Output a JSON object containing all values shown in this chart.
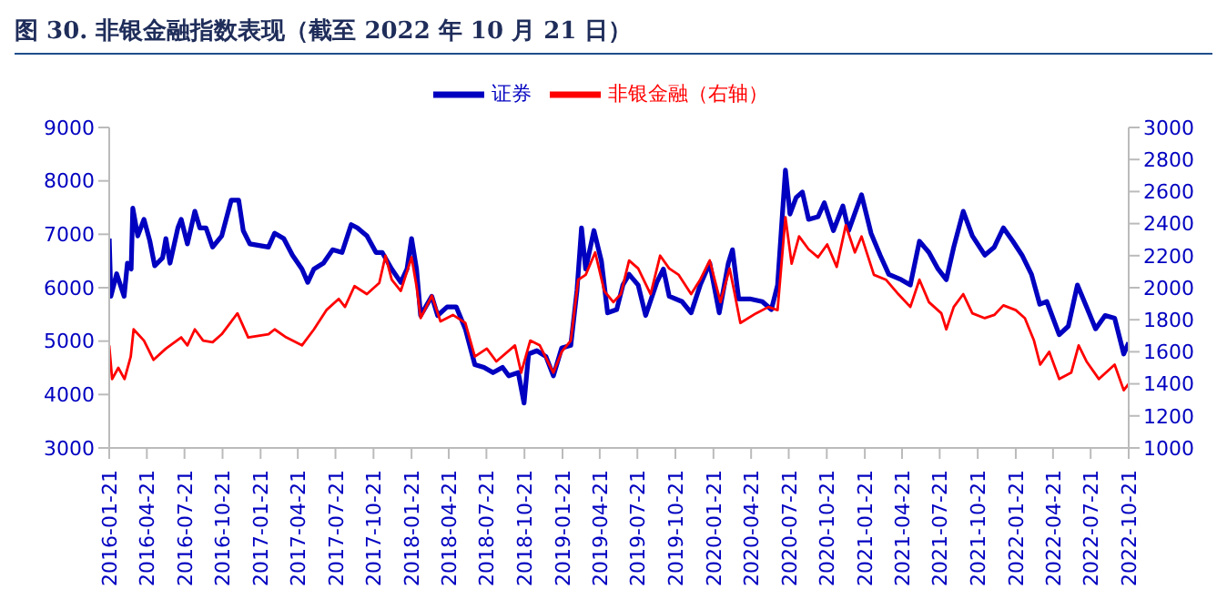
{
  "chart_data": {
    "type": "line",
    "title": "图 30. 非银金融指数表现（截至 2022 年 10 月 21 日）",
    "series": [
      {
        "name": "证券",
        "color": "#0000c0",
        "x": [
          "2016-01-21",
          "2016-01-25",
          "2016-02-08",
          "2016-02-26",
          "2016-03-05",
          "2016-03-14",
          "2016-03-18",
          "2016-03-30",
          "2016-04-14",
          "2016-04-28",
          "2016-05-10",
          "2016-05-29",
          "2016-06-06",
          "2016-06-16",
          "2016-07-05",
          "2016-07-13",
          "2016-07-28",
          "2016-08-15",
          "2016-08-27",
          "2016-09-11",
          "2016-09-27",
          "2016-10-19",
          "2016-11-11",
          "2016-11-29",
          "2016-12-10",
          "2016-12-26",
          "2017-02-09",
          "2017-02-24",
          "2017-03-18",
          "2017-04-08",
          "2017-05-01",
          "2017-05-15",
          "2017-05-30",
          "2017-06-22",
          "2017-07-14",
          "2017-08-06",
          "2017-08-28",
          "2017-09-12",
          "2017-10-05",
          "2017-10-27",
          "2017-11-11",
          "2017-12-04",
          "2017-12-26",
          "2018-01-10",
          "2018-01-21",
          "2018-02-02",
          "2018-02-12",
          "2018-03-11",
          "2018-03-25",
          "2018-04-17",
          "2018-05-09",
          "2018-05-31",
          "2018-06-23",
          "2018-07-15",
          "2018-08-06",
          "2018-08-29",
          "2018-09-13",
          "2018-10-06",
          "2018-10-20",
          "2018-10-31",
          "2018-11-20",
          "2018-12-12",
          "2018-12-30",
          "2019-01-19",
          "2019-02-10",
          "2019-02-25",
          "2019-03-08",
          "2019-03-18",
          "2019-04-07",
          "2019-04-25",
          "2019-05-10",
          "2019-06-01",
          "2019-06-16",
          "2019-07-01",
          "2019-07-23",
          "2019-08-10",
          "2019-09-06",
          "2019-09-22",
          "2019-10-06",
          "2019-11-06",
          "2019-11-28",
          "2019-12-20",
          "2020-01-12",
          "2020-02-04",
          "2020-02-26",
          "2020-03-07",
          "2020-03-22",
          "2020-04-18",
          "2020-05-18",
          "2020-06-09",
          "2020-06-24",
          "2020-07-13",
          "2020-07-24",
          "2020-08-08",
          "2020-08-23",
          "2020-09-07",
          "2020-09-30",
          "2020-10-15",
          "2020-11-06",
          "2020-11-29",
          "2020-12-13",
          "2021-01-13",
          "2021-02-05",
          "2021-02-27",
          "2021-03-20",
          "2021-04-19",
          "2021-05-11",
          "2021-06-02",
          "2021-06-25",
          "2021-07-17",
          "2021-08-06",
          "2021-08-24",
          "2021-09-16",
          "2021-10-08",
          "2021-11-07",
          "2021-11-30",
          "2021-12-22",
          "2022-01-14",
          "2022-02-05",
          "2022-02-28",
          "2022-03-20",
          "2022-04-06",
          "2022-05-06",
          "2022-05-28",
          "2022-06-19",
          "2022-07-11",
          "2022-08-02",
          "2022-08-25",
          "2022-09-17",
          "2022-10-09",
          "2022-10-21"
        ],
        "values": [
          6920,
          5840,
          6260,
          5840,
          6460,
          6350,
          7490,
          6970,
          7280,
          6880,
          6410,
          6560,
          6920,
          6460,
          7120,
          7280,
          6820,
          7430,
          7120,
          7120,
          6760,
          6970,
          7640,
          7640,
          7070,
          6820,
          6760,
          7020,
          6920,
          6610,
          6350,
          6100,
          6350,
          6460,
          6710,
          6660,
          7180,
          7120,
          6970,
          6660,
          6660,
          6350,
          6100,
          6350,
          6920,
          6350,
          5480,
          5840,
          5480,
          5640,
          5640,
          5230,
          4560,
          4510,
          4410,
          4510,
          4350,
          4410,
          3840,
          4760,
          4820,
          4710,
          4350,
          4870,
          4920,
          5950,
          7120,
          6350,
          7070,
          6500,
          5530,
          5590,
          6050,
          6250,
          6050,
          5480,
          6100,
          6350,
          5840,
          5740,
          5530,
          6050,
          6460,
          5530,
          6460,
          6710,
          5790,
          5790,
          5740,
          5590,
          6050,
          8200,
          7380,
          7690,
          7790,
          7280,
          7330,
          7590,
          7070,
          7530,
          7070,
          7740,
          7020,
          6610,
          6250,
          6150,
          6050,
          6870,
          6660,
          6350,
          6150,
          6760,
          7430,
          6970,
          6610,
          6760,
          7120,
          6870,
          6610,
          6250,
          5690,
          5740,
          5120,
          5280,
          6050,
          5640,
          5230,
          5480,
          5430,
          4760,
          4970
        ]
      },
      {
        "name": "非银金融（右轴）",
        "color": "#ff0000",
        "axis": "y2",
        "x": [
          "2016-01-21",
          "2016-01-28",
          "2016-02-12",
          "2016-02-27",
          "2016-03-13",
          "2016-03-20",
          "2016-04-14",
          "2016-05-07",
          "2016-06-06",
          "2016-07-13",
          "2016-07-28",
          "2016-08-15",
          "2016-09-04",
          "2016-09-27",
          "2016-10-19",
          "2016-11-26",
          "2016-12-22",
          "2017-02-09",
          "2017-02-24",
          "2017-03-24",
          "2017-05-01",
          "2017-05-30",
          "2017-06-29",
          "2017-07-29",
          "2017-08-13",
          "2017-09-05",
          "2017-10-05",
          "2017-11-04",
          "2017-11-19",
          "2017-12-04",
          "2017-12-26",
          "2018-01-21",
          "2018-02-02",
          "2018-02-12",
          "2018-03-11",
          "2018-04-01",
          "2018-05-01",
          "2018-05-31",
          "2018-06-23",
          "2018-07-22",
          "2018-08-14",
          "2018-09-28",
          "2018-10-13",
          "2018-11-04",
          "2018-11-27",
          "2018-12-30",
          "2019-01-19",
          "2019-02-10",
          "2019-02-28",
          "2019-03-18",
          "2019-04-10",
          "2019-05-02",
          "2019-05-24",
          "2019-06-11",
          "2019-07-01",
          "2019-07-23",
          "2019-08-22",
          "2019-09-14",
          "2019-10-06",
          "2019-10-29",
          "2019-11-28",
          "2019-12-20",
          "2020-01-12",
          "2020-02-07",
          "2020-02-29",
          "2020-03-11",
          "2020-03-26",
          "2020-05-03",
          "2020-06-02",
          "2020-06-24",
          "2020-07-13",
          "2020-07-28",
          "2020-08-15",
          "2020-09-07",
          "2020-09-30",
          "2020-10-22",
          "2020-11-14",
          "2020-12-06",
          "2020-12-28",
          "2021-01-13",
          "2021-02-12",
          "2021-03-13",
          "2021-04-12",
          "2021-05-11",
          "2021-06-02",
          "2021-06-25",
          "2021-07-25",
          "2021-08-06",
          "2021-08-24",
          "2021-09-16",
          "2021-10-08",
          "2021-11-07",
          "2021-11-30",
          "2021-12-22",
          "2022-01-21",
          "2022-02-12",
          "2022-03-06",
          "2022-03-21",
          "2022-04-12",
          "2022-05-06",
          "2022-06-04",
          "2022-06-22",
          "2022-07-11",
          "2022-08-10",
          "2022-09-17",
          "2022-10-09",
          "2022-10-21"
        ],
        "values": [
          1640,
          1430,
          1500,
          1430,
          1570,
          1740,
          1670,
          1550,
          1620,
          1690,
          1640,
          1740,
          1670,
          1660,
          1710,
          1840,
          1690,
          1710,
          1740,
          1690,
          1640,
          1740,
          1860,
          1930,
          1880,
          2010,
          1960,
          2030,
          2200,
          2050,
          1980,
          2190,
          2010,
          1810,
          1950,
          1790,
          1830,
          1780,
          1570,
          1620,
          1540,
          1640,
          1470,
          1670,
          1640,
          1470,
          1600,
          1670,
          2050,
          2080,
          2220,
          1980,
          1910,
          1960,
          2170,
          2120,
          1960,
          2200,
          2120,
          2080,
          1960,
          2050,
          2170,
          1910,
          2120,
          1980,
          1780,
          1840,
          1880,
          1860,
          2440,
          2150,
          2320,
          2240,
          2190,
          2270,
          2130,
          2390,
          2220,
          2320,
          2080,
          2050,
          1960,
          1880,
          2050,
          1910,
          1840,
          1740,
          1880,
          1960,
          1840,
          1810,
          1830,
          1890,
          1860,
          1810,
          1670,
          1520,
          1600,
          1430,
          1470,
          1640,
          1540,
          1430,
          1520,
          1360,
          1400
        ]
      }
    ],
    "xlim": [
      "2016-01-21",
      "2022-10-21"
    ],
    "xticks": [
      "2016-01-21",
      "2016-04-21",
      "2016-07-21",
      "2016-10-21",
      "2017-01-21",
      "2017-04-21",
      "2017-07-21",
      "2017-10-21",
      "2018-01-21",
      "2018-04-21",
      "2018-07-21",
      "2018-10-21",
      "2019-01-21",
      "2019-04-21",
      "2019-07-21",
      "2019-10-21",
      "2020-01-21",
      "2020-04-21",
      "2020-07-21",
      "2020-10-21",
      "2021-01-21",
      "2021-04-21",
      "2021-07-21",
      "2021-10-21",
      "2022-01-21",
      "2022-04-21",
      "2022-07-21",
      "2022-10-21"
    ],
    "ylim": [
      3000,
      9000
    ],
    "yticks": [
      3000,
      4000,
      5000,
      6000,
      7000,
      8000,
      9000
    ],
    "y2lim": [
      1000,
      3000
    ],
    "y2ticks": [
      1000,
      1200,
      1400,
      1600,
      1800,
      2000,
      2200,
      2400,
      2600,
      2800,
      3000
    ],
    "grid": false,
    "legend": "top",
    "marker": "none",
    "line_style": "solid"
  }
}
